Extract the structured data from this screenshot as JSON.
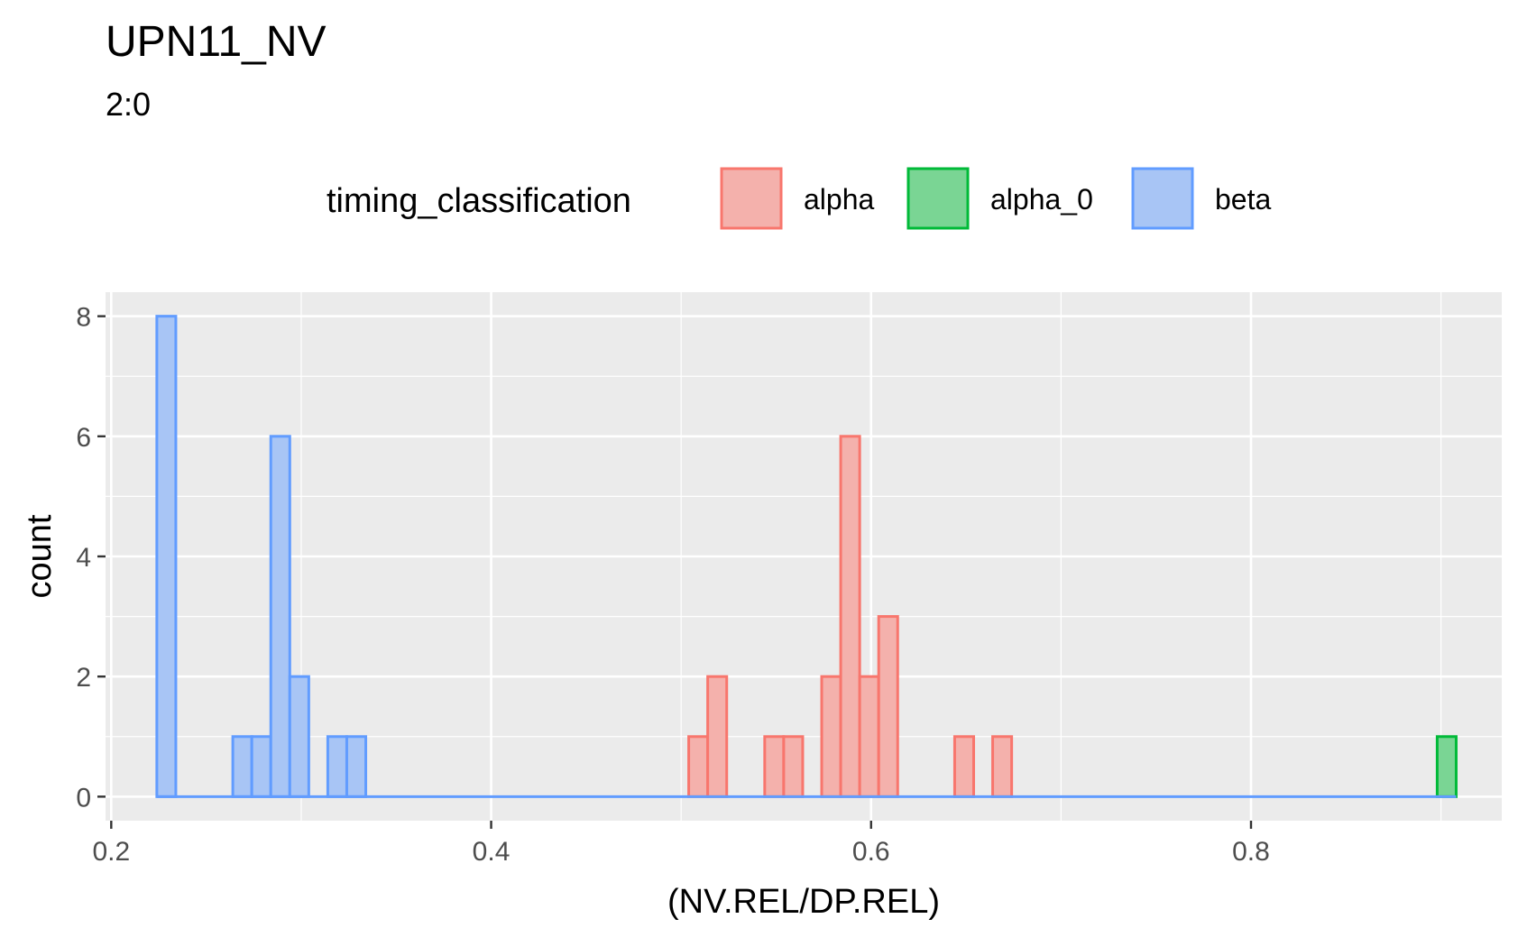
{
  "chart_data": {
    "type": "bar",
    "subtype": "histogram",
    "title": "UPN11_NV",
    "subtitle": "2:0",
    "xlabel": "(NV.REL/DP.REL)",
    "ylabel": "count",
    "xlim": [
      0.197,
      0.932
    ],
    "ylim": [
      -0.4,
      8.4
    ],
    "x_ticks": [
      0.2,
      0.4,
      0.6,
      0.8
    ],
    "x_tick_labels": [
      "0.2",
      "0.4",
      "0.6",
      "0.8"
    ],
    "y_ticks": [
      0,
      2,
      4,
      6,
      8
    ],
    "y_tick_labels": [
      "0",
      "2",
      "4",
      "6",
      "8"
    ],
    "grid": true,
    "legend": {
      "title": "timing_classification",
      "position": "top",
      "entries": [
        "alpha",
        "alpha_0",
        "beta"
      ]
    },
    "bin_width": 0.01,
    "series": [
      {
        "name": "alpha",
        "stroke": "#F8766D",
        "fill": "#F4B1AC",
        "bins": [
          {
            "x0": 0.504,
            "count": 1
          },
          {
            "x0": 0.514,
            "count": 2
          },
          {
            "x0": 0.544,
            "count": 1
          },
          {
            "x0": 0.554,
            "count": 1
          },
          {
            "x0": 0.574,
            "count": 2
          },
          {
            "x0": 0.584,
            "count": 6
          },
          {
            "x0": 0.594,
            "count": 2
          },
          {
            "x0": 0.604,
            "count": 3
          },
          {
            "x0": 0.644,
            "count": 1
          },
          {
            "x0": 0.664,
            "count": 1
          }
        ]
      },
      {
        "name": "alpha_0",
        "stroke": "#00BA38",
        "fill": "#7AD594",
        "bins": [
          {
            "x0": 0.898,
            "count": 1
          }
        ]
      },
      {
        "name": "beta",
        "stroke": "#619CFF",
        "fill": "#A8C5F5",
        "bins": [
          {
            "x0": 0.224,
            "count": 8
          },
          {
            "x0": 0.264,
            "count": 1
          },
          {
            "x0": 0.274,
            "count": 1
          },
          {
            "x0": 0.284,
            "count": 6
          },
          {
            "x0": 0.294,
            "count": 2
          },
          {
            "x0": 0.314,
            "count": 1
          },
          {
            "x0": 0.324,
            "count": 1
          }
        ]
      }
    ],
    "baseline_range": [
      0.224,
      0.908
    ],
    "colors": {
      "panel_background": "#EBEBEB",
      "grid_line": "#FFFFFF",
      "axis_text": "#4D4D4D",
      "text": "#000000"
    }
  }
}
